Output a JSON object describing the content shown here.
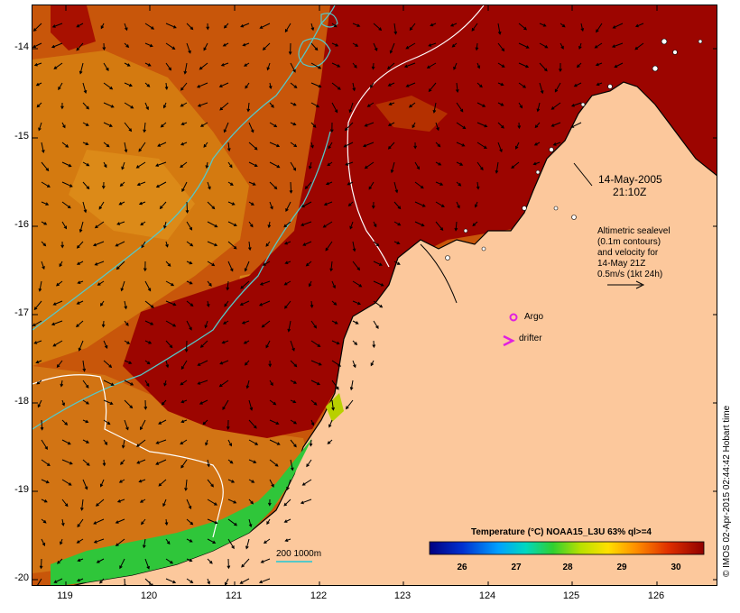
{
  "date_label": "14-May-2005",
  "time_label": "21:10Z",
  "altimetry_note": [
    "Altimetric sealevel",
    "(0.1m contours)",
    "and velocity for",
    "14-May 21Z",
    "0.5m/s (1kt 24h)"
  ],
  "argo_label": "Argo",
  "drifter_label": "drifter",
  "depth_label": "200  1000m",
  "colorbar_title": "Temperature (°C) NOAA15_L3U 63% ql>=4",
  "colorbar_ticks": [
    "26",
    "27",
    "28",
    "29",
    "30"
  ],
  "lat_ticks": [
    "-14",
    "-15",
    "-16",
    "-17",
    "-18",
    "-19",
    "-20"
  ],
  "lon_ticks": [
    "119",
    "120",
    "121",
    "122",
    "123",
    "124",
    "125",
    "126"
  ],
  "credit": "© IMOS 02-Apr-2015 02:44:42 Hobart time",
  "colors": {
    "land": "#fcc89c",
    "sst_warm": "#a10000",
    "sst_mid": "#c44000",
    "sst_orange": "#d97400",
    "sst_cool": "#2fc63a",
    "contour_cyan": "#55c8c8",
    "contour_white": "#ffffff",
    "argo_marker": "#e020e0"
  }
}
